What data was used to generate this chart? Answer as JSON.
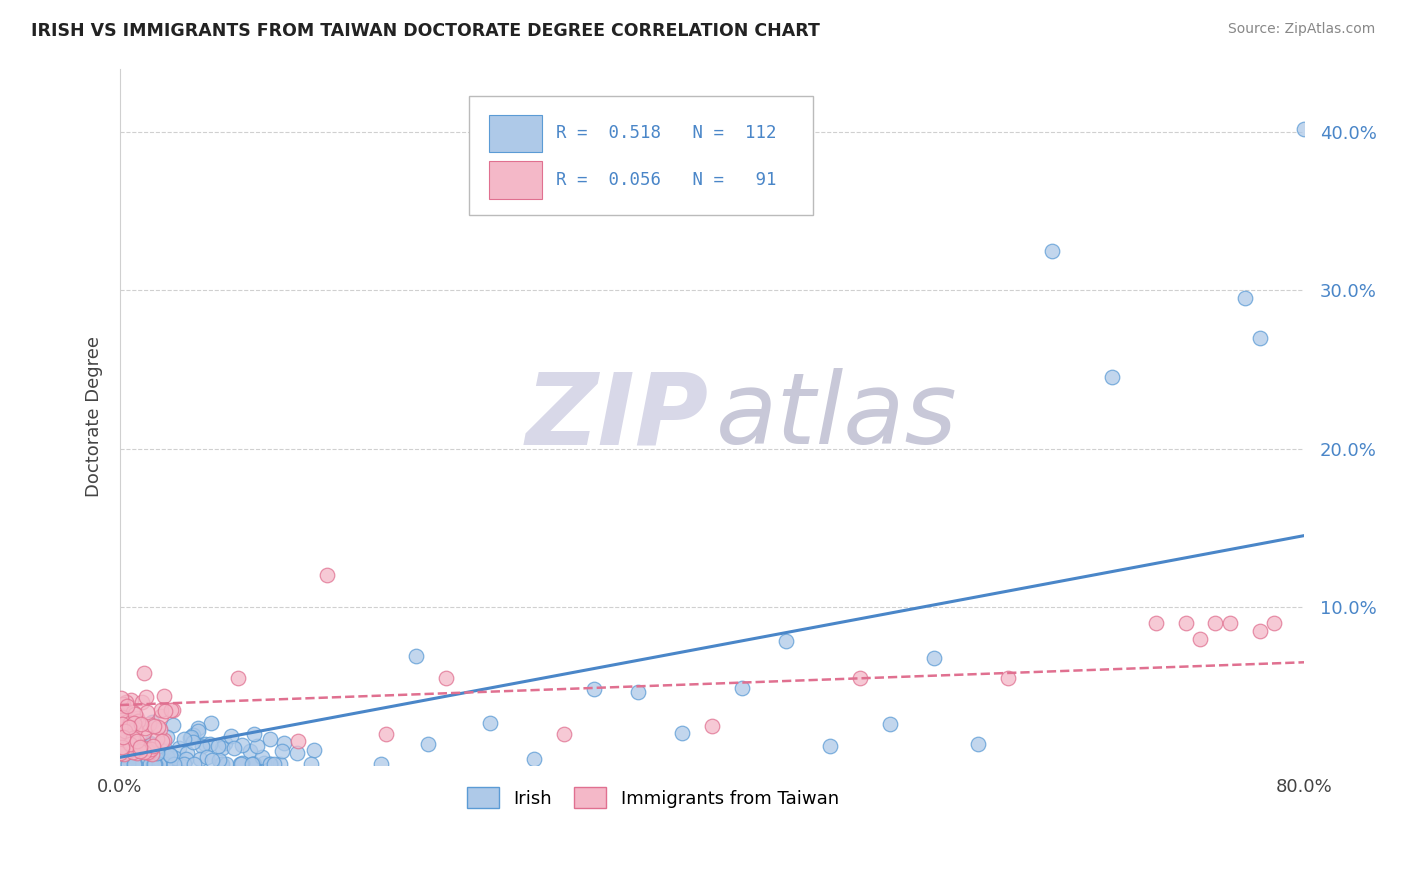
{
  "title": "IRISH VS IMMIGRANTS FROM TAIWAN DOCTORATE DEGREE CORRELATION CHART",
  "source": "Source: ZipAtlas.com",
  "ylabel": "Doctorate Degree",
  "xlim": [
    0.0,
    0.8
  ],
  "ylim": [
    0.0,
    0.44
  ],
  "yticks": [
    0.1,
    0.2,
    0.3,
    0.4
  ],
  "ytick_labels": [
    "10.0%",
    "20.0%",
    "30.0%",
    "40.0%"
  ],
  "blue_fill": "#aec9e8",
  "blue_edge": "#5b9bd5",
  "pink_fill": "#f4b8c8",
  "pink_edge": "#e07090",
  "blue_trend_color": "#4a86c8",
  "pink_trend_color": "#e07090",
  "grid_color": "#d0d0d0",
  "background_color": "#ffffff",
  "title_color": "#222222",
  "source_color": "#888888",
  "legend_text_color": "#4a86c8",
  "watermark_zip_color": "#d8d8e8",
  "watermark_atlas_color": "#c8c8d8",
  "irish_seed": 7,
  "taiwan_seed": 13
}
